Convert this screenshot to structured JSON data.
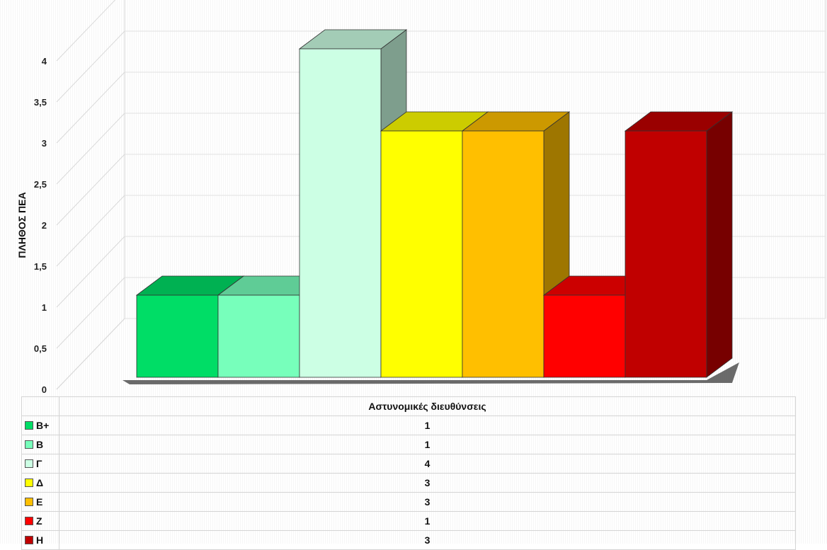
{
  "chart_data": {
    "type": "bar",
    "style": "3d-columns",
    "categories": [
      "Β+",
      "Β",
      "Γ",
      "Δ",
      "Ε",
      "Ζ",
      "Η"
    ],
    "values": [
      1,
      1,
      4,
      3,
      3,
      1,
      3
    ],
    "colors": [
      "#00DD66",
      "#77FFBB",
      "#CCFFE4",
      "#FFFF00",
      "#FFBF00",
      "#FF0000",
      "#C00000"
    ],
    "ylabel": "ΠΛΗΘΟΣ ΠΕΑ",
    "xlabel": "Αστυνομικές διευθύνσεις",
    "ylim": [
      0,
      4.5
    ],
    "yticks": [
      "0",
      "0,5",
      "1",
      "1,5",
      "2",
      "2,5",
      "3",
      "3,5",
      "4"
    ],
    "grid": true,
    "legend": "data-table-below"
  }
}
